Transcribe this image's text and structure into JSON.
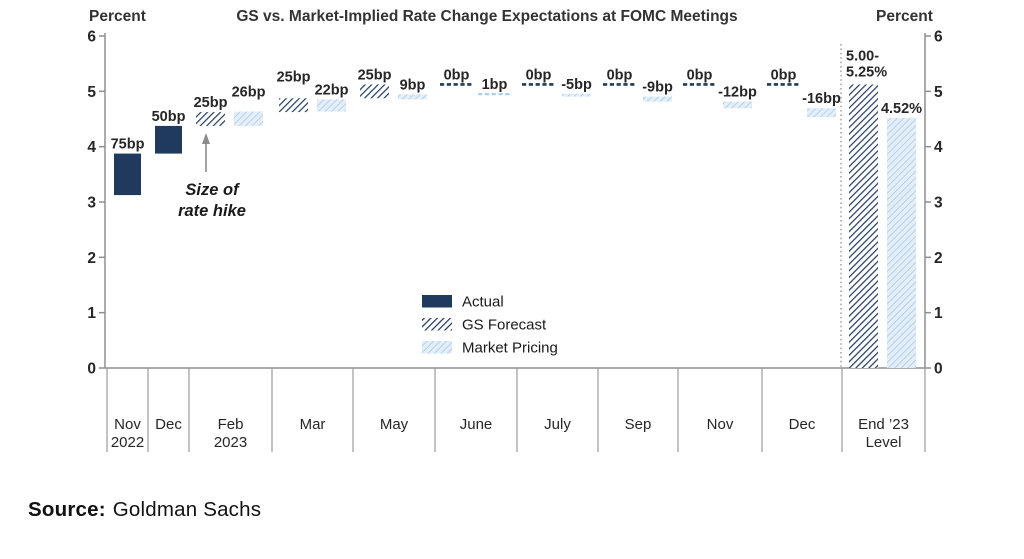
{
  "source_line": {
    "label": "Source:",
    "text": "Goldman Sachs"
  },
  "chart_data": {
    "type": "bar",
    "subtype": "waterfall",
    "title": "GS vs. Market-Implied Rate Change Expectations at FOMC Meetings",
    "y_axis": {
      "label_left": "Percent",
      "label_right": "Percent",
      "min": 0,
      "max": 6,
      "ticks": [
        0,
        1,
        2,
        3,
        4,
        5,
        6
      ]
    },
    "legend": [
      {
        "label": "Actual",
        "style": "solid-navy"
      },
      {
        "label": "GS Forecast",
        "style": "hatch-navy"
      },
      {
        "label": "Market Pricing",
        "style": "hatch-light"
      }
    ],
    "colors": {
      "navy": "#1f3a5c",
      "light_blue_line": "#aecfea",
      "light_blue_fill": "#e4eef8",
      "axis": "#8f8f8f",
      "divider": "#9b9b9b",
      "separator": "#8c8c8c",
      "text": "#262626",
      "arrow": "#8c8c8c"
    },
    "annotation": {
      "lines": [
        "Size of",
        "rate hike"
      ]
    },
    "categories": [
      {
        "label_lines": [
          "Nov",
          "2022"
        ],
        "bars": [
          {
            "series": "actual",
            "from": 3.125,
            "to": 3.875,
            "label": "75bp"
          }
        ]
      },
      {
        "label_lines": [
          "Dec"
        ],
        "bars": [
          {
            "series": "actual",
            "from": 3.875,
            "to": 4.375,
            "label": "50bp"
          }
        ]
      },
      {
        "label_lines": [
          "Feb",
          "2023"
        ],
        "bars": [
          {
            "series": "gs",
            "from": 4.375,
            "to": 4.625,
            "label": "25bp"
          },
          {
            "series": "market",
            "from": 4.375,
            "to": 4.635,
            "label": "26bp",
            "label_dy": -10
          }
        ]
      },
      {
        "label_lines": [
          "Mar"
        ],
        "bars": [
          {
            "series": "gs",
            "from": 4.625,
            "to": 4.875,
            "label": "25bp",
            "label_dy": -12
          },
          {
            "series": "market",
            "from": 4.635,
            "to": 4.855,
            "label": "22bp"
          }
        ]
      },
      {
        "label_lines": [
          "May"
        ],
        "bars": [
          {
            "series": "gs",
            "from": 4.875,
            "to": 5.125,
            "label": "25bp"
          },
          {
            "series": "market",
            "from": 4.855,
            "to": 4.945,
            "label": "9bp"
          }
        ]
      },
      {
        "label_lines": [
          "June"
        ],
        "bars": [
          {
            "series": "gs",
            "from": 5.125,
            "to": 5.125,
            "label": "0bp"
          },
          {
            "series": "market",
            "from": 4.945,
            "to": 4.955,
            "label": "1bp"
          }
        ]
      },
      {
        "label_lines": [
          "July"
        ],
        "bars": [
          {
            "series": "gs",
            "from": 5.125,
            "to": 5.125,
            "label": "0bp"
          },
          {
            "series": "market",
            "from": 4.955,
            "to": 4.905,
            "label": "-5bp"
          }
        ]
      },
      {
        "label_lines": [
          "Sep"
        ],
        "bars": [
          {
            "series": "gs",
            "from": 5.125,
            "to": 5.125,
            "label": "0bp"
          },
          {
            "series": "market",
            "from": 4.905,
            "to": 4.815,
            "label": "-9bp"
          }
        ]
      },
      {
        "label_lines": [
          "Nov"
        ],
        "bars": [
          {
            "series": "gs",
            "from": 5.125,
            "to": 5.125,
            "label": "0bp"
          },
          {
            "series": "market",
            "from": 4.815,
            "to": 4.695,
            "label": "-12bp"
          }
        ]
      },
      {
        "label_lines": [
          "Dec"
        ],
        "bars": [
          {
            "series": "gs",
            "from": 5.125,
            "to": 5.125,
            "label": "0bp"
          },
          {
            "series": "market",
            "from": 4.695,
            "to": 4.535,
            "label": "-16bp"
          }
        ]
      },
      {
        "label_lines": [
          "End ’23",
          "Level"
        ],
        "separator_before": true,
        "bars": [
          {
            "series": "gs",
            "from": 0,
            "to": 5.125,
            "label_lines": [
              "5.00-",
              "5.25%"
            ]
          },
          {
            "series": "market",
            "from": 0,
            "to": 4.52,
            "label": "4.52%"
          }
        ]
      }
    ]
  }
}
